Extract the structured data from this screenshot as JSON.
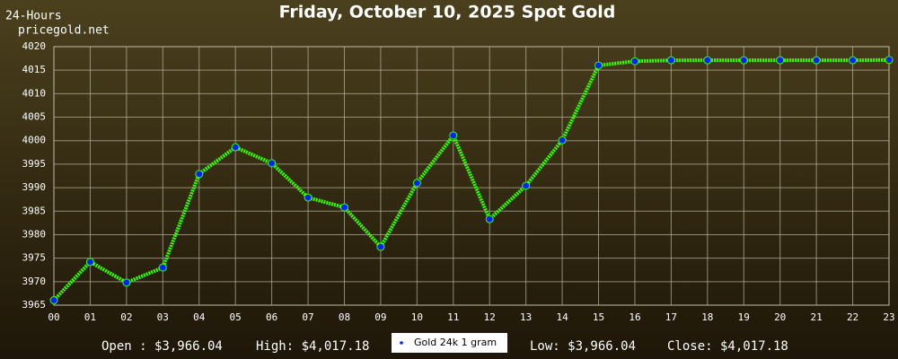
{
  "chart_data": {
    "type": "line",
    "title": "Friday, October 10, 2025 Spot Gold",
    "corner_labels": [
      "24-Hours",
      "pricegold.net"
    ],
    "categories": [
      "00",
      "01",
      "02",
      "03",
      "04",
      "05",
      "06",
      "07",
      "08",
      "09",
      "10",
      "11",
      "12",
      "13",
      "14",
      "15",
      "16",
      "17",
      "18",
      "19",
      "20",
      "21",
      "22",
      "23"
    ],
    "series": [
      {
        "name": "Gold 24k 1 gram",
        "color": "#33ff00",
        "marker_color": "#0022ff",
        "values": [
          3966.04,
          3974.2,
          3969.8,
          3973.0,
          3992.9,
          3998.6,
          3995.2,
          3987.9,
          3985.8,
          3977.4,
          3991.0,
          4001.1,
          3983.3,
          3990.4,
          4000.1,
          4016.0,
          4016.9,
          4017.1,
          4017.1,
          4017.1,
          4017.1,
          4017.1,
          4017.1,
          4017.18
        ]
      }
    ],
    "ylim": [
      3965,
      4020
    ],
    "yticks": [
      3965,
      3970,
      3975,
      3980,
      3985,
      3990,
      3995,
      4000,
      4005,
      4010,
      4015,
      4020
    ],
    "grid": true,
    "footer": {
      "open": "Open : $3,966.04",
      "high": "High: $4,017.18",
      "low": "Low: $3,966.04",
      "close": "Close: $4,017.18"
    }
  }
}
